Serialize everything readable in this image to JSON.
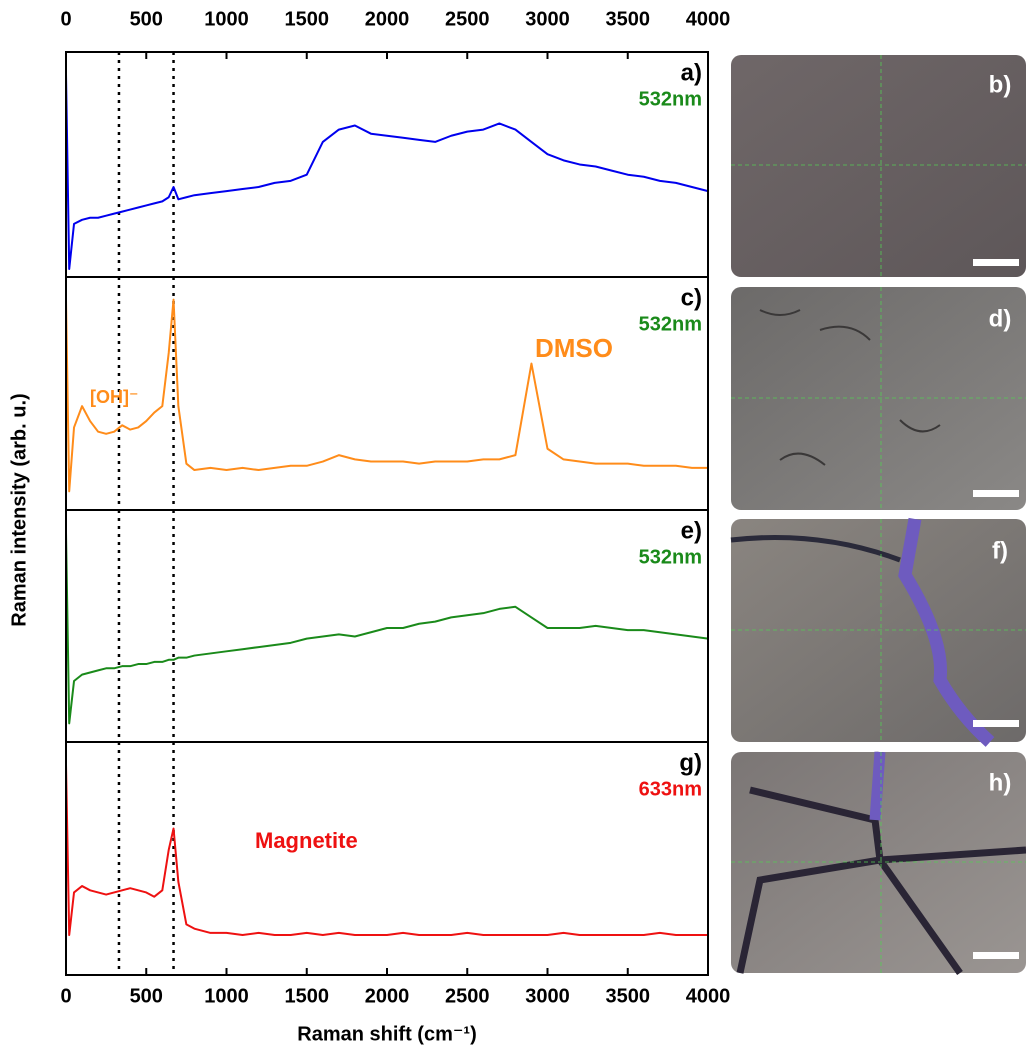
{
  "figure": {
    "ylabel": "Raman intensity (arb. u.)",
    "images": [
      "b)",
      "d)",
      "f)",
      "h)"
    ]
  },
  "chart_data": [
    {
      "type": "line",
      "label": "a)",
      "laser": "532nm",
      "laser_color": "#1a8a1a",
      "color": "#0000ee",
      "xlim": [
        0,
        4000
      ],
      "ylim": [
        0,
        1
      ],
      "xticks": [
        0,
        500,
        1000,
        1500,
        2000,
        2500,
        3000,
        3500,
        4000
      ],
      "reference_lines": [
        330,
        670
      ],
      "x": [
        0,
        20,
        50,
        100,
        150,
        200,
        250,
        300,
        350,
        400,
        450,
        500,
        550,
        600,
        640,
        670,
        700,
        750,
        800,
        900,
        1000,
        1100,
        1200,
        1300,
        1400,
        1500,
        1600,
        1700,
        1800,
        1900,
        2000,
        2100,
        2200,
        2300,
        2400,
        2500,
        2600,
        2700,
        2800,
        2900,
        3000,
        3100,
        3200,
        3300,
        3400,
        3500,
        3600,
        3700,
        3800,
        3900,
        4000
      ],
      "values": [
        0.95,
        0.0,
        0.22,
        0.24,
        0.25,
        0.25,
        0.26,
        0.27,
        0.28,
        0.29,
        0.3,
        0.31,
        0.32,
        0.33,
        0.35,
        0.4,
        0.34,
        0.35,
        0.36,
        0.37,
        0.38,
        0.39,
        0.4,
        0.42,
        0.43,
        0.46,
        0.62,
        0.68,
        0.7,
        0.66,
        0.65,
        0.64,
        0.63,
        0.62,
        0.65,
        0.67,
        0.68,
        0.71,
        0.68,
        0.62,
        0.56,
        0.53,
        0.51,
        0.5,
        0.48,
        0.46,
        0.45,
        0.43,
        0.42,
        0.4,
        0.38
      ]
    },
    {
      "type": "line",
      "label": "c)",
      "laser": "532nm",
      "laser_color": "#1a8a1a",
      "color": "#ff8c1a",
      "xlim": [
        0,
        4000
      ],
      "ylim": [
        0,
        1
      ],
      "reference_lines": [
        330,
        670
      ],
      "annotations": [
        "[OH]⁻",
        "DMSO"
      ],
      "x": [
        0,
        20,
        50,
        100,
        150,
        200,
        250,
        300,
        350,
        400,
        450,
        500,
        550,
        600,
        640,
        670,
        700,
        750,
        800,
        900,
        1000,
        1100,
        1200,
        1300,
        1400,
        1500,
        1600,
        1700,
        1800,
        1900,
        2000,
        2100,
        2200,
        2300,
        2400,
        2500,
        2600,
        2700,
        2800,
        2900,
        3000,
        3100,
        3200,
        3300,
        3400,
        3500,
        3600,
        3700,
        3800,
        3900,
        4000
      ],
      "values": [
        0.95,
        0.05,
        0.35,
        0.45,
        0.38,
        0.33,
        0.32,
        0.33,
        0.36,
        0.34,
        0.35,
        0.38,
        0.42,
        0.45,
        0.7,
        0.95,
        0.45,
        0.18,
        0.15,
        0.16,
        0.15,
        0.16,
        0.15,
        0.16,
        0.17,
        0.17,
        0.19,
        0.22,
        0.2,
        0.19,
        0.19,
        0.19,
        0.18,
        0.19,
        0.19,
        0.19,
        0.2,
        0.2,
        0.22,
        0.65,
        0.25,
        0.2,
        0.19,
        0.18,
        0.18,
        0.18,
        0.17,
        0.17,
        0.17,
        0.16,
        0.16
      ]
    },
    {
      "type": "line",
      "label": "e)",
      "laser": "532nm",
      "laser_color": "#1a8a1a",
      "color": "#1a8a1a",
      "xlim": [
        0,
        4000
      ],
      "ylim": [
        0,
        1
      ],
      "reference_lines": [
        330,
        670
      ],
      "x": [
        0,
        20,
        50,
        100,
        150,
        200,
        250,
        300,
        350,
        400,
        450,
        500,
        550,
        600,
        640,
        670,
        700,
        750,
        800,
        900,
        1000,
        1100,
        1200,
        1300,
        1400,
        1500,
        1600,
        1700,
        1800,
        1900,
        2000,
        2100,
        2200,
        2300,
        2400,
        2500,
        2600,
        2700,
        2800,
        2900,
        3000,
        3100,
        3200,
        3300,
        3400,
        3500,
        3600,
        3700,
        3800,
        3900,
        4000
      ],
      "values": [
        0.95,
        0.05,
        0.25,
        0.28,
        0.29,
        0.3,
        0.31,
        0.31,
        0.32,
        0.32,
        0.33,
        0.33,
        0.34,
        0.34,
        0.35,
        0.35,
        0.36,
        0.36,
        0.37,
        0.38,
        0.39,
        0.4,
        0.41,
        0.42,
        0.43,
        0.45,
        0.46,
        0.47,
        0.46,
        0.48,
        0.5,
        0.5,
        0.52,
        0.53,
        0.55,
        0.56,
        0.57,
        0.59,
        0.6,
        0.55,
        0.5,
        0.5,
        0.5,
        0.51,
        0.5,
        0.49,
        0.49,
        0.48,
        0.47,
        0.46,
        0.45
      ]
    },
    {
      "type": "line",
      "label": "g)",
      "laser": "633nm",
      "laser_color": "#ee1111",
      "color": "#ee1111",
      "xlim": [
        0,
        4000
      ],
      "ylim": [
        0,
        1
      ],
      "xticks": [
        0,
        500,
        1000,
        1500,
        2000,
        2500,
        3000,
        3500,
        4000
      ],
      "reference_lines": [
        330,
        670
      ],
      "xlabel": "Raman shift (cm⁻¹)",
      "annotations": [
        "Magnetite"
      ],
      "x": [
        0,
        20,
        50,
        100,
        150,
        200,
        250,
        300,
        350,
        400,
        450,
        500,
        550,
        600,
        640,
        670,
        700,
        750,
        800,
        900,
        1000,
        1100,
        1200,
        1300,
        1400,
        1500,
        1600,
        1700,
        1800,
        1900,
        2000,
        2100,
        2200,
        2300,
        2400,
        2500,
        2600,
        2700,
        2800,
        2900,
        3000,
        3100,
        3200,
        3300,
        3400,
        3500,
        3600,
        3700,
        3800,
        3900,
        4000
      ],
      "values": [
        0.95,
        0.15,
        0.35,
        0.38,
        0.36,
        0.35,
        0.34,
        0.35,
        0.36,
        0.37,
        0.36,
        0.35,
        0.33,
        0.36,
        0.55,
        0.65,
        0.4,
        0.2,
        0.18,
        0.16,
        0.16,
        0.15,
        0.16,
        0.15,
        0.15,
        0.16,
        0.15,
        0.16,
        0.15,
        0.15,
        0.15,
        0.16,
        0.15,
        0.15,
        0.15,
        0.16,
        0.15,
        0.15,
        0.15,
        0.15,
        0.15,
        0.16,
        0.15,
        0.15,
        0.15,
        0.15,
        0.15,
        0.16,
        0.15,
        0.15,
        0.15
      ]
    }
  ]
}
